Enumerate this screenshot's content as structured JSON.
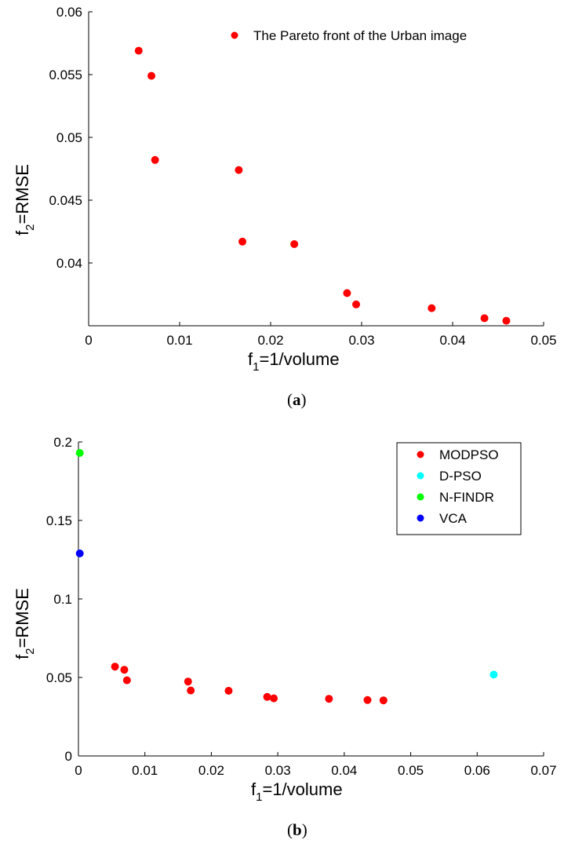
{
  "chart_data": [
    {
      "type": "scatter",
      "caption_open": "(",
      "caption_letter": "a",
      "caption_close": ")",
      "xlabel": {
        "main": "f",
        "sub": "1",
        "rest": "=1/volume"
      },
      "ylabel": {
        "main": "f",
        "sub": "2",
        "rest": "=RMSE"
      },
      "xlim": [
        0,
        0.05
      ],
      "ylim": [
        0.035,
        0.06
      ],
      "xticks": [
        0,
        0.01,
        0.02,
        0.03,
        0.04,
        0.05
      ],
      "xtick_labels": [
        "0",
        "0.01",
        "0.02",
        "0.03",
        "0.04",
        "0.05"
      ],
      "yticks": [
        0.04,
        0.045,
        0.05,
        0.055,
        0.06
      ],
      "ytick_labels": [
        "0.04",
        "0.045",
        "0.05",
        "0.055",
        "0.06"
      ],
      "grid": false,
      "legend_position": "top-right",
      "series": [
        {
          "name": "The Pareto front of the Urban image",
          "color": "#ff0000",
          "x": [
            0.0055,
            0.0069,
            0.0073,
            0.0165,
            0.0169,
            0.0226,
            0.0284,
            0.0294,
            0.0377,
            0.0435,
            0.0459
          ],
          "y": [
            0.0569,
            0.0549,
            0.0482,
            0.0474,
            0.0417,
            0.0415,
            0.0376,
            0.0367,
            0.0364,
            0.0356,
            0.0354
          ]
        }
      ]
    },
    {
      "type": "scatter",
      "caption_open": "(",
      "caption_letter": "b",
      "caption_close": ")",
      "xlabel": {
        "main": "f",
        "sub": "1",
        "rest": "=1/volume"
      },
      "ylabel": {
        "main": "f",
        "sub": "2",
        "rest": "=RMSE"
      },
      "xlim": [
        0,
        0.07
      ],
      "ylim": [
        0,
        0.2
      ],
      "xticks": [
        0,
        0.01,
        0.02,
        0.03,
        0.04,
        0.05,
        0.06,
        0.07
      ],
      "xtick_labels": [
        "0",
        "0.01",
        "0.02",
        "0.03",
        "0.04",
        "0.05",
        "0.06",
        "0.07"
      ],
      "yticks": [
        0,
        0.05,
        0.1,
        0.15,
        0.2
      ],
      "ytick_labels": [
        "0",
        "0.05",
        "0.1",
        "0.15",
        "0.2"
      ],
      "grid": false,
      "legend_position": "top-right",
      "series": [
        {
          "name": "MODPSO",
          "color": "#ff0000",
          "x": [
            0.0055,
            0.0069,
            0.0073,
            0.0165,
            0.0169,
            0.0226,
            0.0284,
            0.0294,
            0.0377,
            0.0435,
            0.0459
          ],
          "y": [
            0.0569,
            0.0549,
            0.0482,
            0.0474,
            0.0417,
            0.0415,
            0.0376,
            0.0367,
            0.0364,
            0.0356,
            0.0354
          ]
        },
        {
          "name": "D-PSO",
          "color": "#00ffff",
          "x": [
            0.0625
          ],
          "y": [
            0.0518
          ]
        },
        {
          "name": "N-FINDR",
          "color": "#00ff00",
          "x": [
            0.0002
          ],
          "y": [
            0.193
          ]
        },
        {
          "name": "VCA",
          "color": "#0000ff",
          "x": [
            0.0002
          ],
          "y": [
            0.129
          ]
        }
      ]
    }
  ]
}
